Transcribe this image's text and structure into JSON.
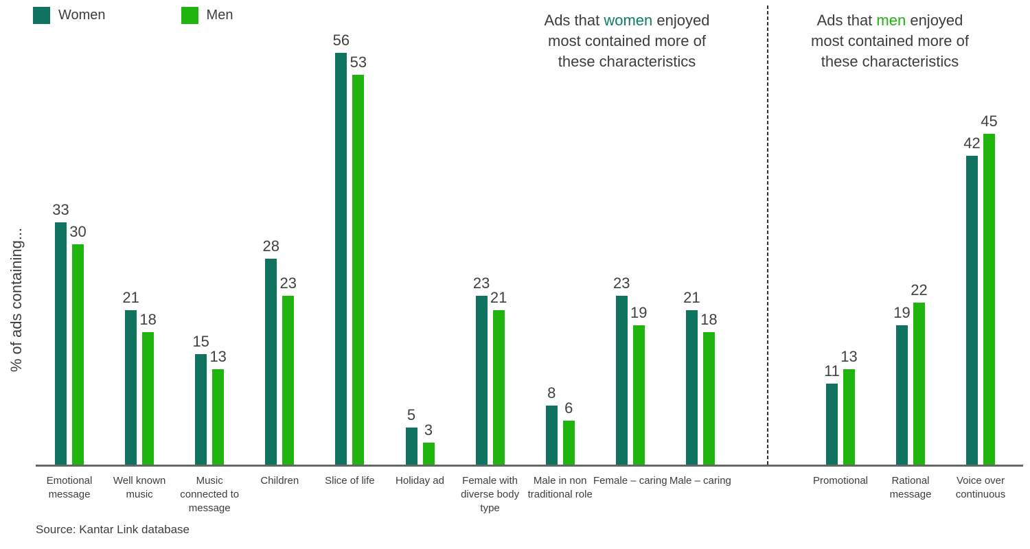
{
  "legend": {
    "items": [
      {
        "label": "Women",
        "color": "#10735f"
      },
      {
        "label": "Men",
        "color": "#1fb40e"
      }
    ]
  },
  "annotations": {
    "women": {
      "pre": "Ads that ",
      "highlight": "women",
      "post": " enjoyed",
      "line2": "most contained more of",
      "line3": "these characteristics",
      "highlight_color": "#0f7c68"
    },
    "men": {
      "pre": "Ads that ",
      "highlight": "men",
      "post": " enjoyed",
      "line2": "most contained more of",
      "line3": "these characteristics",
      "highlight_color": "#1fb40e"
    }
  },
  "ylabel": "% of ads containing...",
  "source": "Source: Kantar Link database",
  "chart_data": {
    "type": "bar",
    "title": "",
    "xlabel": "",
    "ylabel": "% of ads containing...",
    "ylim": [
      0,
      60
    ],
    "grid": false,
    "legend_position": "top-left",
    "value_labels": true,
    "categories": [
      "Emotional message",
      "Well known music",
      "Music connected to message",
      "Children",
      "Slice of life",
      "Holiday ad",
      "Female with diverse body type",
      "Male in non traditional role",
      "Female – caring",
      "Male – caring",
      "Promotional",
      "Rational message",
      "Voice over continuous"
    ],
    "series": [
      {
        "name": "Women",
        "color": "#10735f",
        "values": [
          33,
          21,
          15,
          28,
          56,
          5,
          23,
          8,
          23,
          21,
          11,
          19,
          42
        ]
      },
      {
        "name": "Men",
        "color": "#1fb40e",
        "values": [
          30,
          18,
          13,
          23,
          53,
          3,
          21,
          6,
          19,
          18,
          13,
          22,
          45
        ]
      }
    ],
    "divider_after_category": "Male – caring",
    "section_notes": [
      "Ads that women enjoyed most contained more of these characteristics",
      "Ads that men enjoyed most contained more of these characteristics"
    ]
  }
}
